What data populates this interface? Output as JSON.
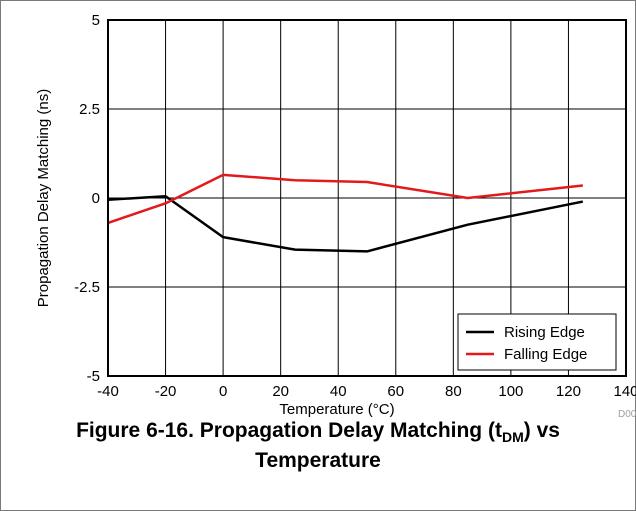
{
  "chart_data": {
    "type": "line",
    "xlabel": "Temperature (°C)",
    "ylabel": "Propagation Delay Matching (ns)",
    "xlim": [
      -40,
      140
    ],
    "ylim": [
      -5,
      5
    ],
    "xticks": [
      -40,
      -20,
      0,
      20,
      40,
      60,
      80,
      100,
      120,
      140
    ],
    "xtick_labels": [
      "-40",
      "-20",
      "0",
      "20",
      "40",
      "60",
      "80",
      "100",
      "120",
      "140"
    ],
    "yticks": [
      5,
      2.5,
      0,
      -2.5,
      -5
    ],
    "ytick_labels": [
      "5",
      "2.5",
      "0",
      "-2.5",
      "-5"
    ],
    "grid": true,
    "legend_position": "bottom-right",
    "series": [
      {
        "name": "Rising Edge",
        "color": "#000000",
        "x": [
          -40,
          -20,
          0,
          25,
          50,
          85,
          125
        ],
        "y": [
          -0.05,
          0.05,
          -1.1,
          -1.45,
          -1.5,
          -0.75,
          -0.1
        ]
      },
      {
        "name": "Falling Edge",
        "color": "#e31a1c",
        "x": [
          -40,
          -20,
          0,
          25,
          50,
          85,
          125
        ],
        "y": [
          -0.7,
          -0.15,
          0.65,
          0.5,
          0.45,
          0.0,
          0.35
        ]
      }
    ],
    "watermark": "D007"
  },
  "caption": {
    "prefix": "Figure 6-16. Propagation Delay Matching (t",
    "subscript": "DM",
    "suffix": ") vs",
    "line2": "Temperature"
  }
}
